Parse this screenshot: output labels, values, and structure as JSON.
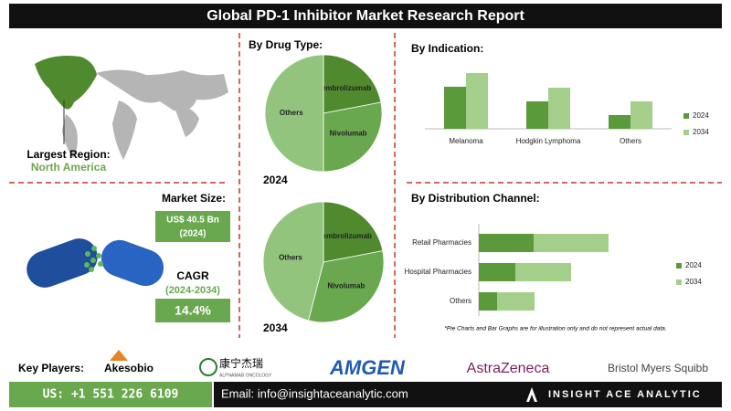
{
  "header": {
    "title": "Global PD-1 Inhibitor Market Research Report"
  },
  "region": {
    "label": "Largest Region:",
    "value": "North America"
  },
  "market": {
    "label": "Market Size:",
    "value": "US$ 40.5 Bn",
    "year": "(2024)"
  },
  "cagr": {
    "label": "CAGR",
    "period": "(2024-2034)",
    "value": "14.4%"
  },
  "sections": {
    "drug_type": "By Drug Type:"
  },
  "chart_data": [
    {
      "type": "pie",
      "title": "2024",
      "categories": [
        "Pembrolizumab",
        "Nivolumab",
        "Others"
      ],
      "values": [
        22,
        28,
        50
      ],
      "colors": [
        "#4f8a2e",
        "#6aa84f",
        "#93c47d"
      ]
    },
    {
      "type": "pie",
      "title": "2034",
      "categories": [
        "Pembrolizumab",
        "Nivolumab",
        "Others"
      ],
      "values": [
        22,
        32,
        46
      ],
      "colors": [
        "#4f8a2e",
        "#6aa84f",
        "#93c47d"
      ]
    },
    {
      "type": "bar",
      "title": "By Indication:",
      "categories": [
        "Melanoma",
        "Hodgkin Lymphoma",
        "Others"
      ],
      "ylim": [
        0,
        70
      ],
      "series": [
        {
          "name": "2024",
          "color": "#5a9a3a",
          "values": [
            46,
            30,
            15
          ]
        },
        {
          "name": "2034",
          "color": "#a3cf8a",
          "values": [
            61,
            45,
            30
          ]
        }
      ]
    },
    {
      "type": "stacked_barh",
      "title": "By Distribution Channel:",
      "categories": [
        "Retail Pharmacies",
        "Hospital Pharmacies",
        "Others"
      ],
      "xlim": [
        0,
        160
      ],
      "series": [
        {
          "name": "2024",
          "color": "#5a9a3a",
          "values": [
            60,
            40,
            20
          ]
        },
        {
          "name": "2034",
          "color": "#a3cf8a",
          "values": [
            82,
            61,
            41
          ]
        }
      ],
      "note": "*Pie Charts and Bar Graphs are for illustration only and do not represent actual data."
    }
  ],
  "players": {
    "label": "Key Players:",
    "companies": [
      "Akesobio",
      "康宁杰瑞",
      "ALPHAMAB ONCOLOGY",
      "AMGEN",
      "AstraZeneca",
      "Bristol Myers Squibb"
    ]
  },
  "footer": {
    "phone": "US: +1 551 226 6109",
    "email": "Email: info@insightaceanalytic.com",
    "brand": "INSIGHT ACE ANALYTIC"
  }
}
